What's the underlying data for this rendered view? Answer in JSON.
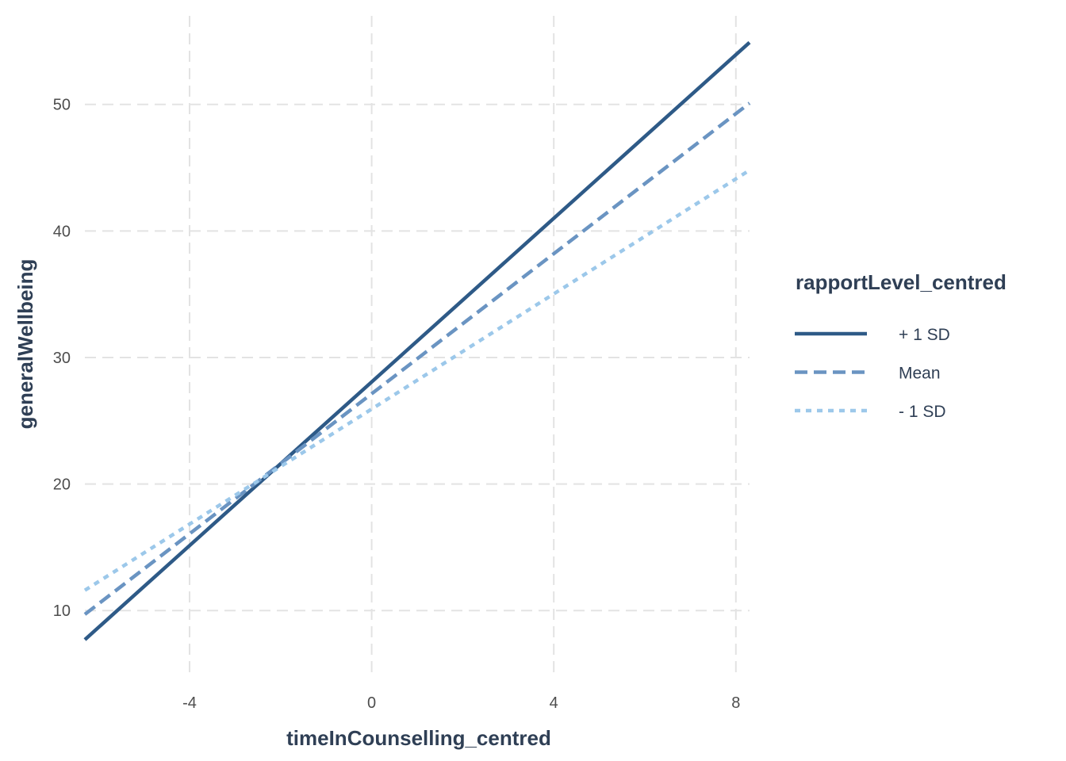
{
  "chart_data": {
    "type": "line",
    "xlabel": "timeInCounselling_centred",
    "ylabel": "generalWellbeing",
    "xlim": [
      -6.3,
      8.3
    ],
    "ylim": [
      5.0,
      57.0
    ],
    "x_ticks": [
      -4,
      0,
      4,
      8
    ],
    "x_tick_labels": [
      "-4",
      "0",
      "4",
      "8"
    ],
    "y_ticks": [
      10,
      20,
      30,
      40,
      50
    ],
    "y_tick_labels": [
      "10",
      "20",
      "30",
      "40",
      "50"
    ],
    "grid": true,
    "legend": {
      "title": "rapportLevel_centred",
      "placement": "right"
    },
    "series": [
      {
        "name": "+ 1 SD",
        "color": "#2e5a87",
        "dash": "solid",
        "x": [
          -6.3,
          8.3
        ],
        "y": [
          7.7,
          54.9
        ]
      },
      {
        "name": "Mean",
        "color": "#6a94c2",
        "dash": "dashed",
        "x": [
          -6.3,
          8.3
        ],
        "y": [
          9.7,
          50.1
        ]
      },
      {
        "name": "- 1 SD",
        "color": "#9cc8ea",
        "dash": "dotted",
        "x": [
          -6.3,
          8.3
        ],
        "y": [
          11.6,
          44.8
        ]
      }
    ]
  }
}
